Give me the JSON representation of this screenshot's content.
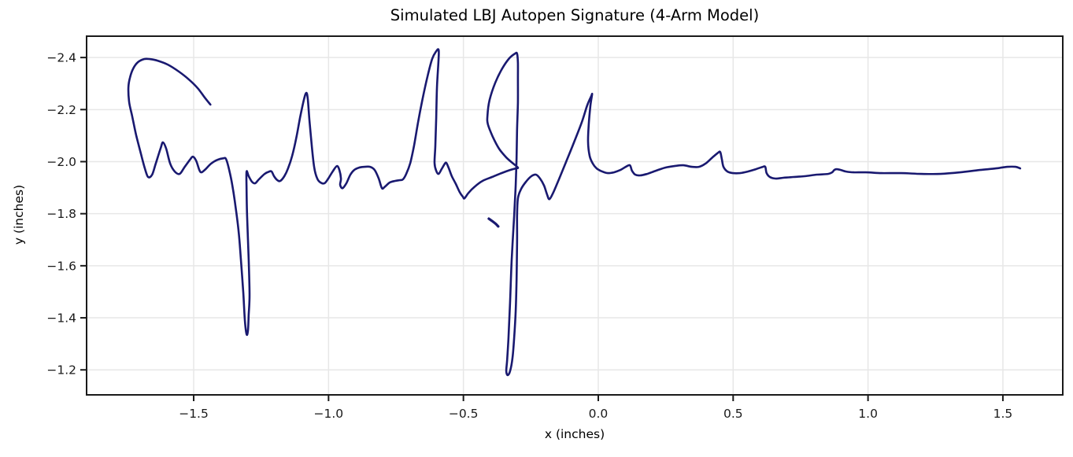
{
  "chart_data": {
    "type": "line",
    "title": "Simulated LBJ Autopen Signature (4-Arm Model)",
    "xlabel": "x (inches)",
    "ylabel": "y (inches)",
    "xlim": [
      -1.897,
      1.722
    ],
    "ylim": [
      -2.482,
      -1.104
    ],
    "y_axis_inverted": true,
    "grid": true,
    "legend": "none",
    "line_color": "#191970",
    "line_width": 2.6,
    "grid_color": "#e7e7e7",
    "spine_color": "#1a1a1a",
    "x_ticks": [
      {
        "value": -1.5,
        "label": "−1.5"
      },
      {
        "value": -1.0,
        "label": "−1.0"
      },
      {
        "value": -0.5,
        "label": "−0.5"
      },
      {
        "value": 0.0,
        "label": "0.0"
      },
      {
        "value": 0.5,
        "label": "0.5"
      },
      {
        "value": 1.0,
        "label": "1.0"
      },
      {
        "value": 1.5,
        "label": "1.5"
      }
    ],
    "y_ticks": [
      {
        "value": -2.4,
        "label": "−2.4"
      },
      {
        "value": -2.2,
        "label": "−2.2"
      },
      {
        "value": -2.0,
        "label": "−2.0"
      },
      {
        "value": -1.8,
        "label": "−1.8"
      },
      {
        "value": -1.6,
        "label": "−1.6"
      },
      {
        "value": -1.4,
        "label": "−1.4"
      },
      {
        "value": -1.2,
        "label": "−1.2"
      }
    ],
    "series": [
      {
        "name": "signature_stroke",
        "points": [
          [
            -1.438,
            -2.219
          ],
          [
            -1.459,
            -2.246
          ],
          [
            -1.485,
            -2.282
          ],
          [
            -1.517,
            -2.315
          ],
          [
            -1.555,
            -2.346
          ],
          [
            -1.596,
            -2.373
          ],
          [
            -1.634,
            -2.388
          ],
          [
            -1.663,
            -2.394
          ],
          [
            -1.684,
            -2.394
          ],
          [
            -1.707,
            -2.382
          ],
          [
            -1.724,
            -2.358
          ],
          [
            -1.736,
            -2.324
          ],
          [
            -1.742,
            -2.285
          ],
          [
            -1.739,
            -2.228
          ],
          [
            -1.727,
            -2.17
          ],
          [
            -1.713,
            -2.101
          ],
          [
            -1.695,
            -2.028
          ],
          [
            -1.681,
            -1.974
          ],
          [
            -1.669,
            -1.941
          ],
          [
            -1.654,
            -1.95
          ],
          [
            -1.64,
            -1.995
          ],
          [
            -1.622,
            -2.053
          ],
          [
            -1.614,
            -2.074
          ],
          [
            -1.602,
            -2.05
          ],
          [
            -1.587,
            -1.992
          ],
          [
            -1.57,
            -1.962
          ],
          [
            -1.552,
            -1.953
          ],
          [
            -1.535,
            -1.977
          ],
          [
            -1.514,
            -2.007
          ],
          [
            -1.503,
            -2.019
          ],
          [
            -1.491,
            -2.004
          ],
          [
            -1.479,
            -1.968
          ],
          [
            -1.471,
            -1.959
          ],
          [
            -1.456,
            -1.971
          ],
          [
            -1.436,
            -1.992
          ],
          [
            -1.412,
            -2.007
          ],
          [
            -1.389,
            -2.013
          ],
          [
            -1.38,
            -2.01
          ],
          [
            -1.369,
            -1.971
          ],
          [
            -1.357,
            -1.911
          ],
          [
            -1.345,
            -1.829
          ],
          [
            -1.333,
            -1.729
          ],
          [
            -1.325,
            -1.624
          ],
          [
            -1.316,
            -1.494
          ],
          [
            -1.31,
            -1.388
          ],
          [
            -1.304,
            -1.337
          ],
          [
            -1.299,
            -1.349
          ],
          [
            -1.296,
            -1.412
          ],
          [
            -1.293,
            -1.488
          ],
          [
            -1.296,
            -1.624
          ],
          [
            -1.302,
            -1.79
          ],
          [
            -1.304,
            -1.895
          ],
          [
            -1.304,
            -1.962
          ],
          [
            -1.296,
            -1.944
          ],
          [
            -1.284,
            -1.923
          ],
          [
            -1.272,
            -1.917
          ],
          [
            -1.258,
            -1.932
          ],
          [
            -1.237,
            -1.953
          ],
          [
            -1.22,
            -1.962
          ],
          [
            -1.211,
            -1.962
          ],
          [
            -1.202,
            -1.944
          ],
          [
            -1.19,
            -1.929
          ],
          [
            -1.179,
            -1.926
          ],
          [
            -1.164,
            -1.944
          ],
          [
            -1.15,
            -1.974
          ],
          [
            -1.135,
            -2.022
          ],
          [
            -1.12,
            -2.089
          ],
          [
            -1.106,
            -2.167
          ],
          [
            -1.091,
            -2.24
          ],
          [
            -1.082,
            -2.264
          ],
          [
            -1.077,
            -2.24
          ],
          [
            -1.071,
            -2.161
          ],
          [
            -1.062,
            -2.059
          ],
          [
            -1.053,
            -1.977
          ],
          [
            -1.042,
            -1.935
          ],
          [
            -1.03,
            -1.92
          ],
          [
            -1.015,
            -1.917
          ],
          [
            -1.001,
            -1.935
          ],
          [
            -0.983,
            -1.965
          ],
          [
            -0.969,
            -1.983
          ],
          [
            -0.96,
            -1.968
          ],
          [
            -0.954,
            -1.935
          ],
          [
            -0.957,
            -1.911
          ],
          [
            -0.948,
            -1.898
          ],
          [
            -0.934,
            -1.917
          ],
          [
            -0.919,
            -1.95
          ],
          [
            -0.905,
            -1.968
          ],
          [
            -0.887,
            -1.977
          ],
          [
            -0.867,
            -1.98
          ],
          [
            -0.846,
            -1.98
          ],
          [
            -0.829,
            -1.968
          ],
          [
            -0.814,
            -1.935
          ],
          [
            -0.802,
            -1.898
          ],
          [
            -0.791,
            -1.904
          ],
          [
            -0.773,
            -1.92
          ],
          [
            -0.753,
            -1.926
          ],
          [
            -0.735,
            -1.929
          ],
          [
            -0.724,
            -1.932
          ],
          [
            -0.712,
            -1.953
          ],
          [
            -0.697,
            -1.995
          ],
          [
            -0.683,
            -2.062
          ],
          [
            -0.668,
            -2.152
          ],
          [
            -0.651,
            -2.243
          ],
          [
            -0.633,
            -2.328
          ],
          [
            -0.616,
            -2.394
          ],
          [
            -0.601,
            -2.424
          ],
          [
            -0.592,
            -2.43
          ],
          [
            -0.592,
            -2.394
          ],
          [
            -0.598,
            -2.288
          ],
          [
            -0.601,
            -2.167
          ],
          [
            -0.604,
            -2.062
          ],
          [
            -0.607,
            -1.995
          ],
          [
            -0.601,
            -1.965
          ],
          [
            -0.592,
            -1.953
          ],
          [
            -0.581,
            -1.971
          ],
          [
            -0.569,
            -1.992
          ],
          [
            -0.563,
            -1.995
          ],
          [
            -0.554,
            -1.974
          ],
          [
            -0.543,
            -1.944
          ],
          [
            -0.528,
            -1.914
          ],
          [
            -0.514,
            -1.883
          ],
          [
            -0.502,
            -1.865
          ],
          [
            -0.496,
            -1.859
          ],
          [
            -0.481,
            -1.88
          ],
          [
            -0.458,
            -1.904
          ],
          [
            -0.429,
            -1.926
          ],
          [
            -0.394,
            -1.941
          ],
          [
            -0.359,
            -1.956
          ],
          [
            -0.327,
            -1.968
          ],
          [
            -0.306,
            -1.974
          ],
          [
            -0.298,
            -1.977
          ],
          [
            -0.315,
            -1.992
          ],
          [
            -0.341,
            -2.016
          ],
          [
            -0.368,
            -2.05
          ],
          [
            -0.391,
            -2.095
          ],
          [
            -0.409,
            -2.143
          ],
          [
            -0.411,
            -2.176
          ],
          [
            -0.403,
            -2.237
          ],
          [
            -0.382,
            -2.303
          ],
          [
            -0.356,
            -2.358
          ],
          [
            -0.33,
            -2.397
          ],
          [
            -0.309,
            -2.415
          ],
          [
            -0.301,
            -2.415
          ],
          [
            -0.298,
            -2.379
          ],
          [
            -0.298,
            -2.318
          ],
          [
            -0.298,
            -2.228
          ],
          [
            -0.301,
            -2.122
          ],
          [
            -0.303,
            -2.016
          ],
          [
            -0.306,
            -1.911
          ],
          [
            -0.312,
            -1.79
          ],
          [
            -0.321,
            -1.624
          ],
          [
            -0.327,
            -1.458
          ],
          [
            -0.333,
            -1.322
          ],
          [
            -0.338,
            -1.237
          ],
          [
            -0.341,
            -1.195
          ],
          [
            -0.336,
            -1.18
          ],
          [
            -0.327,
            -1.195
          ],
          [
            -0.318,
            -1.246
          ],
          [
            -0.312,
            -1.322
          ],
          [
            -0.306,
            -1.428
          ],
          [
            -0.303,
            -1.548
          ],
          [
            -0.301,
            -1.684
          ],
          [
            -0.301,
            -1.79
          ],
          [
            -0.298,
            -1.859
          ],
          [
            -0.286,
            -1.895
          ],
          [
            -0.268,
            -1.923
          ],
          [
            -0.248,
            -1.944
          ],
          [
            -0.231,
            -1.95
          ],
          [
            -0.216,
            -1.935
          ],
          [
            -0.201,
            -1.908
          ],
          [
            -0.19,
            -1.874
          ],
          [
            -0.181,
            -1.856
          ],
          [
            -0.166,
            -1.883
          ],
          [
            -0.146,
            -1.932
          ],
          [
            -0.12,
            -1.998
          ],
          [
            -0.09,
            -2.074
          ],
          [
            -0.061,
            -2.152
          ],
          [
            -0.041,
            -2.216
          ],
          [
            -0.026,
            -2.252
          ],
          [
            -0.023,
            -2.258
          ],
          [
            -0.029,
            -2.216
          ],
          [
            -0.035,
            -2.149
          ],
          [
            -0.038,
            -2.077
          ],
          [
            -0.032,
            -2.022
          ],
          [
            -0.02,
            -1.992
          ],
          [
            -0.006,
            -1.974
          ],
          [
            0.015,
            -1.962
          ],
          [
            0.035,
            -1.956
          ],
          [
            0.058,
            -1.959
          ],
          [
            0.082,
            -1.968
          ],
          [
            0.102,
            -1.98
          ],
          [
            0.117,
            -1.986
          ],
          [
            0.125,
            -1.965
          ],
          [
            0.137,
            -1.95
          ],
          [
            0.155,
            -1.947
          ],
          [
            0.181,
            -1.953
          ],
          [
            0.213,
            -1.965
          ],
          [
            0.248,
            -1.977
          ],
          [
            0.283,
            -1.983
          ],
          [
            0.315,
            -1.986
          ],
          [
            0.347,
            -1.98
          ],
          [
            0.373,
            -1.98
          ],
          [
            0.397,
            -1.992
          ],
          [
            0.423,
            -2.016
          ],
          [
            0.444,
            -2.034
          ],
          [
            0.452,
            -2.037
          ],
          [
            0.458,
            -2.01
          ],
          [
            0.464,
            -1.98
          ],
          [
            0.479,
            -1.962
          ],
          [
            0.499,
            -1.956
          ],
          [
            0.525,
            -1.956
          ],
          [
            0.554,
            -1.962
          ],
          [
            0.584,
            -1.971
          ],
          [
            0.61,
            -1.98
          ],
          [
            0.619,
            -1.98
          ],
          [
            0.624,
            -1.956
          ],
          [
            0.636,
            -1.941
          ],
          [
            0.657,
            -1.935
          ],
          [
            0.686,
            -1.938
          ],
          [
            0.724,
            -1.941
          ],
          [
            0.765,
            -1.944
          ],
          [
            0.811,
            -1.95
          ],
          [
            0.852,
            -1.953
          ],
          [
            0.867,
            -1.959
          ],
          [
            0.875,
            -1.968
          ],
          [
            0.884,
            -1.971
          ],
          [
            0.899,
            -1.968
          ],
          [
            0.919,
            -1.962
          ],
          [
            0.948,
            -1.959
          ],
          [
            0.992,
            -1.959
          ],
          [
            1.05,
            -1.956
          ],
          [
            1.123,
            -1.956
          ],
          [
            1.196,
            -1.953
          ],
          [
            1.269,
            -1.953
          ],
          [
            1.342,
            -1.959
          ],
          [
            1.415,
            -1.968
          ],
          [
            1.474,
            -1.974
          ],
          [
            1.517,
            -1.98
          ],
          [
            1.547,
            -1.98
          ],
          [
            1.564,
            -1.974
          ]
        ]
      },
      {
        "name": "pen_skip_mark",
        "points": [
          [
            -0.406,
            -1.781
          ],
          [
            -0.394,
            -1.772
          ],
          [
            -0.379,
            -1.76
          ],
          [
            -0.371,
            -1.751
          ]
        ]
      }
    ]
  }
}
